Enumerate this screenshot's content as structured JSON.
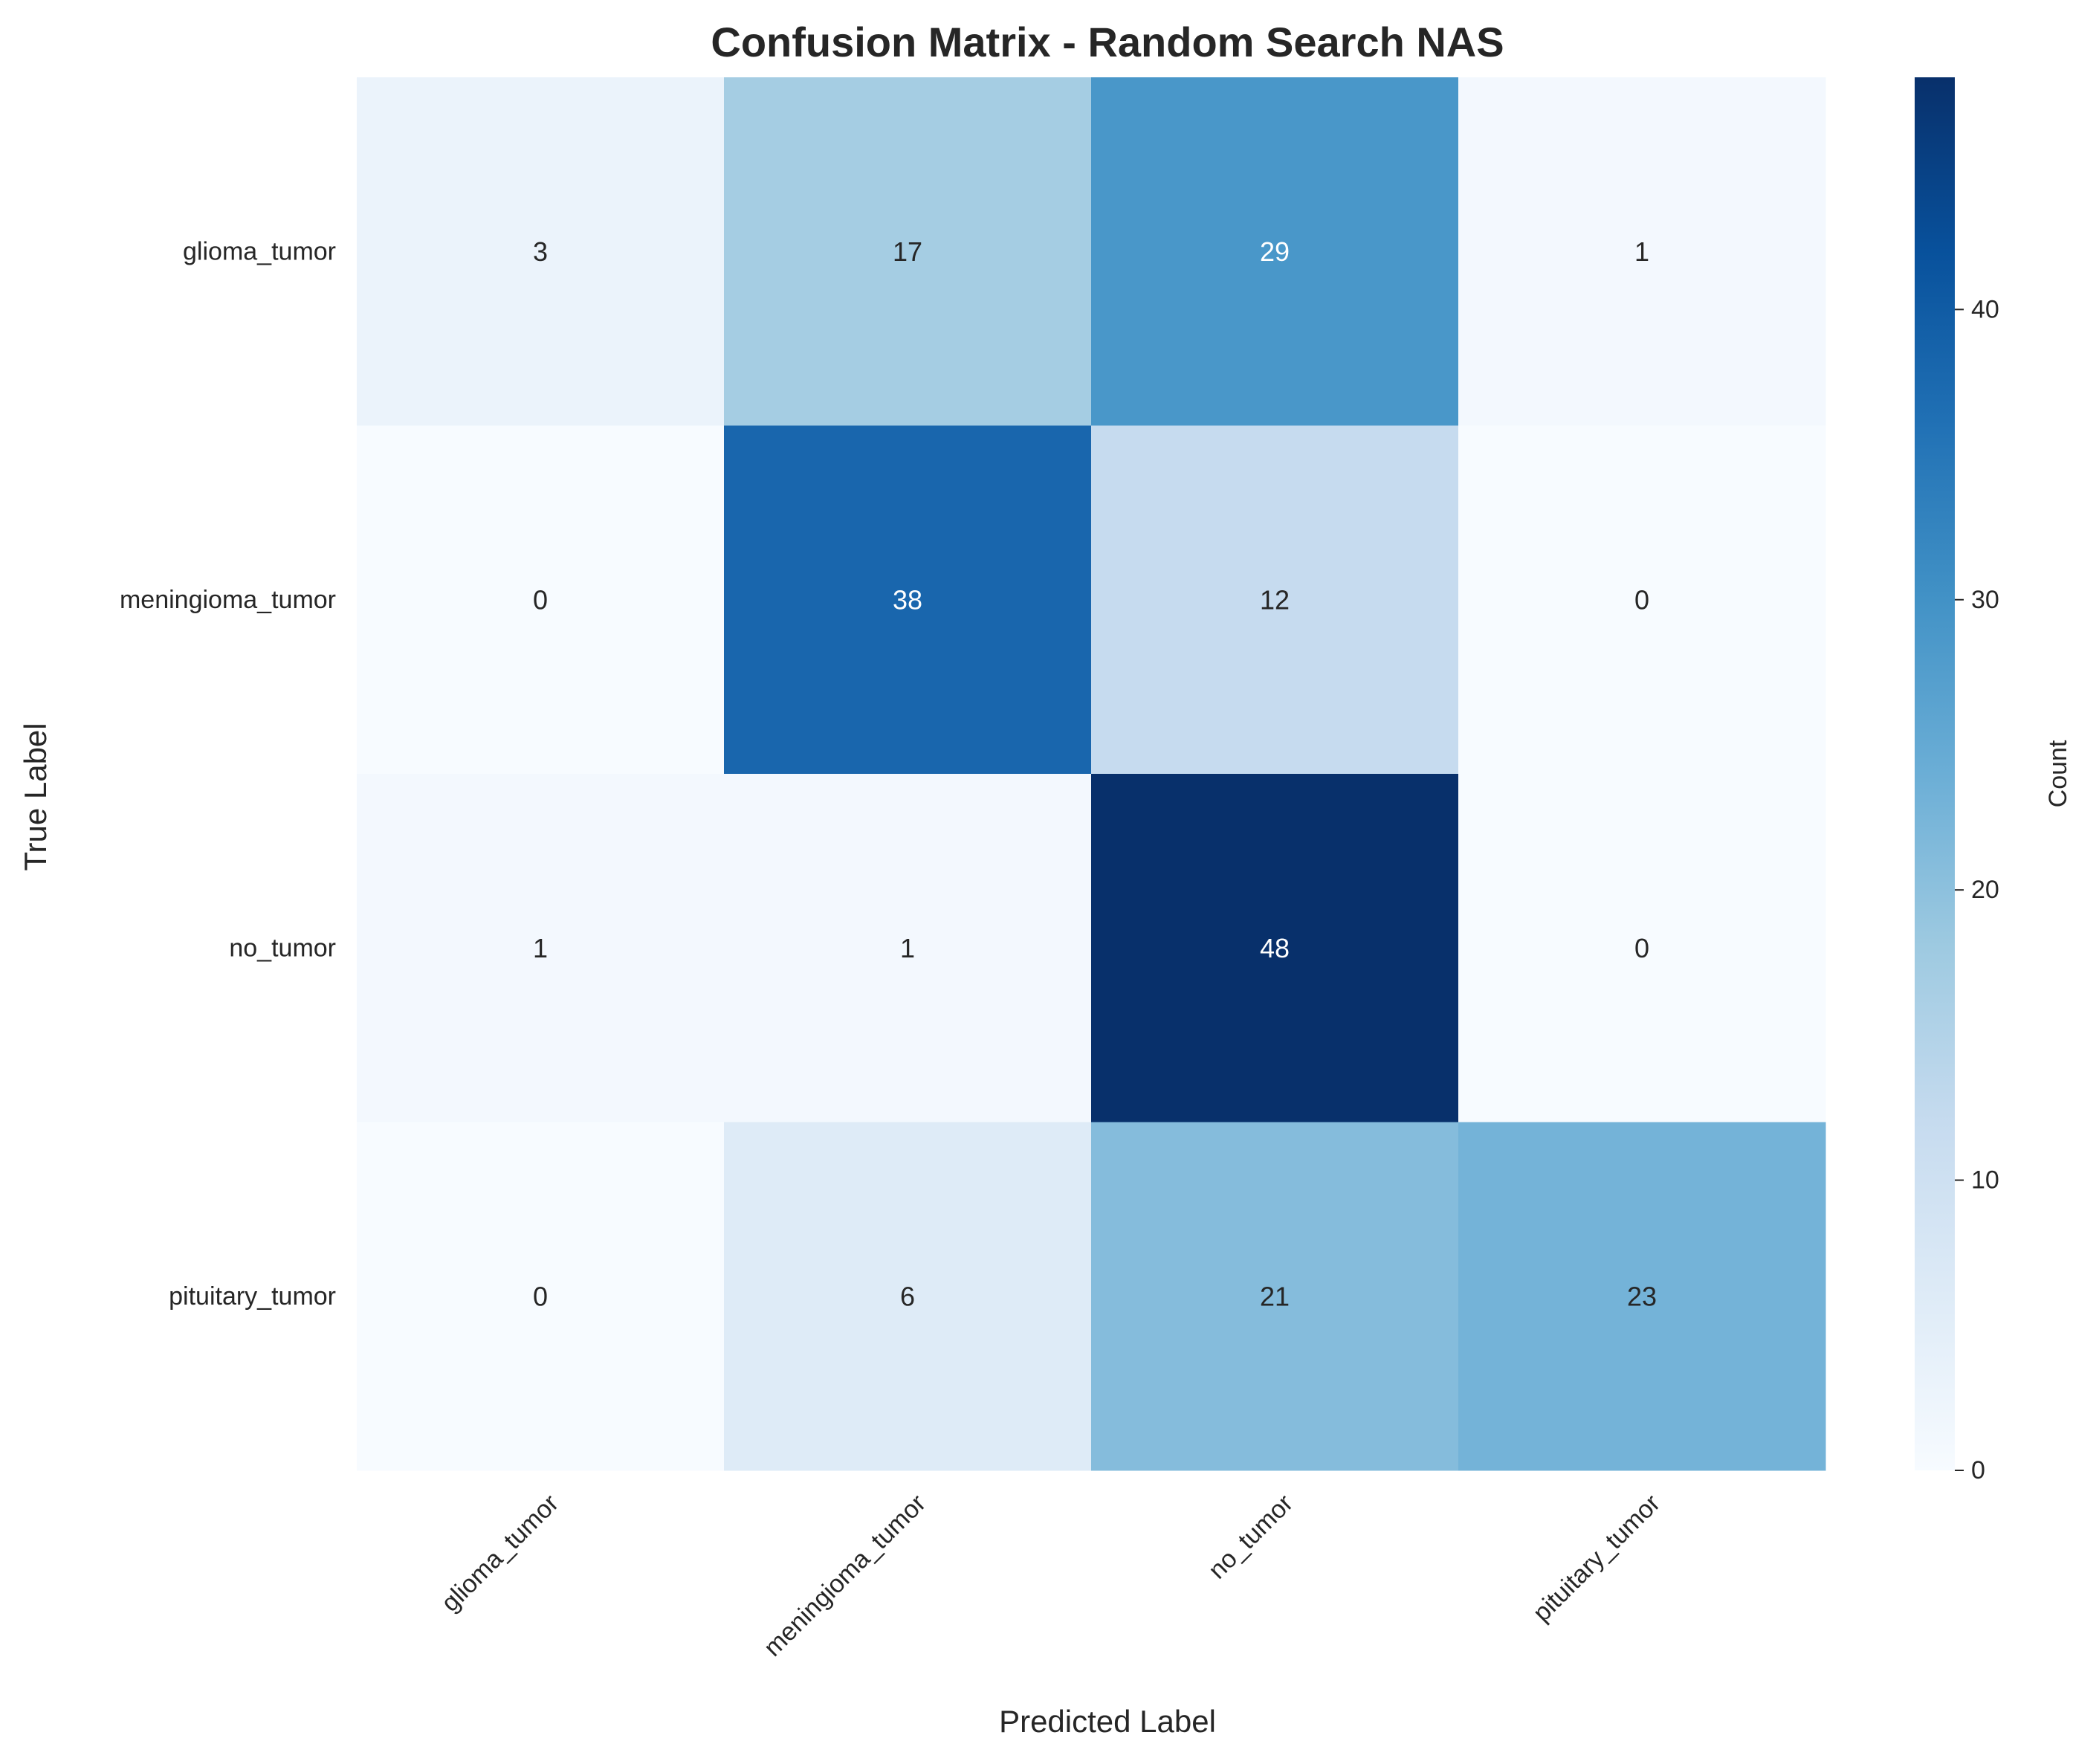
{
  "chart_data": {
    "type": "heatmap",
    "title": "Confusion Matrix - Random Search NAS",
    "xlabel": "Predicted Label",
    "ylabel": "True Label",
    "x_categories": [
      "glioma_tumor",
      "meningioma_tumor",
      "no_tumor",
      "pituitary_tumor"
    ],
    "y_categories": [
      "glioma_tumor",
      "meningioma_tumor",
      "no_tumor",
      "pituitary_tumor"
    ],
    "values": [
      [
        3,
        17,
        29,
        1
      ],
      [
        0,
        38,
        12,
        0
      ],
      [
        1,
        1,
        48,
        0
      ],
      [
        0,
        6,
        21,
        23
      ]
    ],
    "colormap": "Blues",
    "colorbar": {
      "label": "Count",
      "range": [
        0,
        48
      ],
      "ticks": [
        0,
        10,
        20,
        30,
        40
      ]
    },
    "grid": false
  }
}
